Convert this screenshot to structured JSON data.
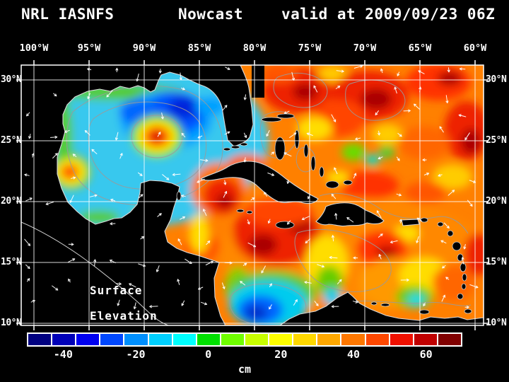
{
  "header": {
    "model": "NRL IASNFS",
    "product": "Nowcast",
    "valid_label": "valid at 2009/09/23 06Z"
  },
  "axes": {
    "lon_labels": [
      "100°W",
      "95°W",
      "90°W",
      "85°W",
      "80°W",
      "75°W",
      "70°W",
      "65°W",
      "60°W"
    ],
    "lat_labels": [
      "30°N",
      "25°N",
      "20°N",
      "15°N",
      "10°N"
    ]
  },
  "overlay": {
    "line1": "Surface",
    "line2": "Elevation"
  },
  "colorbar": {
    "unit": "cm",
    "range": [
      -50,
      70
    ],
    "tick_values": [
      -40,
      -20,
      0,
      20,
      40,
      60
    ],
    "tick_labels": [
      "-40",
      "-20",
      "0",
      "20",
      "40",
      "60"
    ],
    "colors": [
      "#000080",
      "#0000b8",
      "#0000f0",
      "#0048ff",
      "#0090ff",
      "#00d0ff",
      "#00ffff",
      "#00e000",
      "#70ff00",
      "#c8ff00",
      "#ffff00",
      "#ffd800",
      "#ffa800",
      "#ff7800",
      "#ff4800",
      "#f01000",
      "#c00000",
      "#800000"
    ]
  },
  "chart_data": {
    "type": "heatmap",
    "title": "NRL IASNFS Nowcast valid at 2009/09/23 06Z",
    "variable": "Surface Elevation",
    "units": "cm",
    "region": "Gulf of Mexico and Caribbean Sea (Intra-Americas Sea)",
    "x_axis": {
      "label": "Longitude",
      "tick_labels": [
        "100°W",
        "95°W",
        "90°W",
        "85°W",
        "80°W",
        "75°W",
        "70°W",
        "65°W",
        "60°W"
      ],
      "tick_values_deg_west": [
        100,
        95,
        90,
        85,
        80,
        75,
        70,
        65,
        60
      ]
    },
    "y_axis": {
      "label": "Latitude",
      "tick_labels": [
        "30°N",
        "25°N",
        "20°N",
        "15°N",
        "10°N"
      ],
      "tick_values_deg_north": [
        30,
        25,
        20,
        15,
        10
      ]
    },
    "colorbar": {
      "unit": "cm",
      "min": -50,
      "max": 70,
      "segments": 18,
      "tick_values": [
        -40,
        -20,
        0,
        20,
        40,
        60
      ]
    },
    "vectors": "white surface-current arrows overlaid on field",
    "contours": "gray sea-surface-height contour lines overlaid on field",
    "features": [
      {
        "name": "Anticyclonic warm-core eddy, central Gulf of Mexico",
        "approx_lon": "89W",
        "approx_lat": "25.5N",
        "ssh_cm": 55
      },
      {
        "name": "Low SSH (cyclonic) region, north-central Gulf of Mexico",
        "approx_lon": "91W",
        "approx_lat": "26.5N",
        "ssh_cm": -35
      },
      {
        "name": "Small warm eddy off western Gulf coast",
        "approx_lon": "96.5W",
        "approx_lat": "22.5N",
        "ssh_cm": 30
      },
      {
        "name": "Broad high SSH, subtropical Atlantic east of 80W",
        "approx_lon": "75-60W",
        "approx_lat": "20-30N",
        "ssh_cm": 45
      },
      {
        "name": "High SSH, northwest Caribbean / Cayman Sea",
        "approx_lon": "83W",
        "approx_lat": "17N",
        "ssh_cm": 50
      },
      {
        "name": "Cyclonic low, southwest Caribbean (Colombia Basin)",
        "approx_lon": "79W",
        "approx_lat": "11.5N",
        "ssh_cm": -30
      },
      {
        "name": "Cold eddy, southeast Caribbean",
        "approx_lon": "69W",
        "approx_lat": "12.5N",
        "ssh_cm": -5
      }
    ]
  }
}
